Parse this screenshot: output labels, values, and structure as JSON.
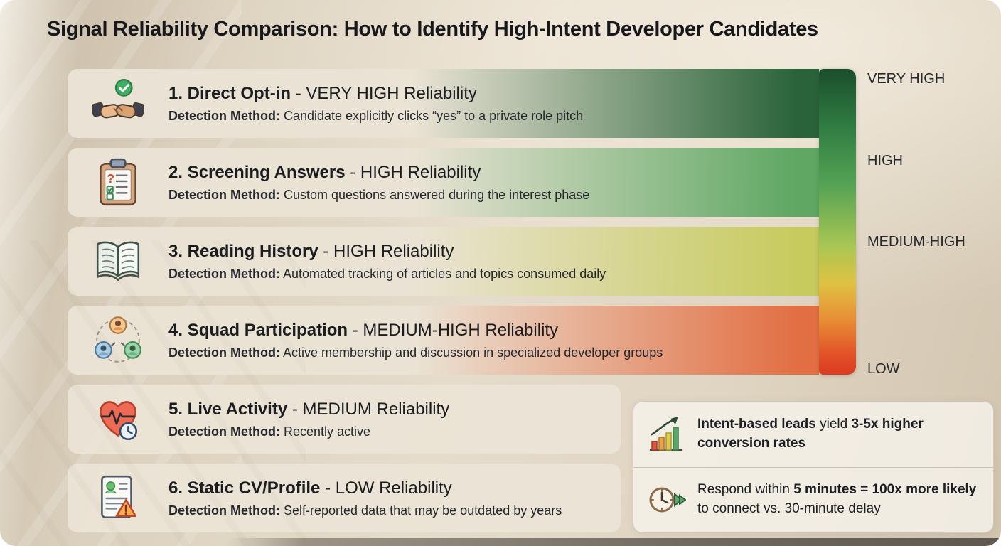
{
  "title": "Signal Reliability Comparison: How to Identify High-Intent Developer Candidates",
  "rows": [
    {
      "title_bold": "1. Direct Opt-in",
      "title_rest": " - VERY HIGH Reliability",
      "method_label": "Detection Method:",
      "method": " Candidate explicitly clicks “yes” to a private role pitch",
      "icon": "handshake-check-icon",
      "color": "#2a6339"
    },
    {
      "title_bold": "2. Screening Answers",
      "title_rest": " - HIGH Reliability",
      "method_label": "Detection Method:",
      "method": " Custom questions answered during the interest phase",
      "icon": "clipboard-questions-icon",
      "color": "#5fa763"
    },
    {
      "title_bold": "3. Reading History",
      "title_rest": " - HIGH Reliability",
      "method_label": "Detection Method:",
      "method": " Automated tracking of articles and topics consumed daily",
      "icon": "open-book-icon",
      "color": "#c7cb5e"
    },
    {
      "title_bold": "4. Squad Participation",
      "title_rest": " - MEDIUM-HIGH Reliability",
      "method_label": "Detection Method:",
      "method": " Active membership and discussion in specialized developer groups",
      "icon": "squad-network-icon",
      "color": "#e26f44"
    },
    {
      "title_bold": "5. Live Activity",
      "title_rest": " - MEDIUM Reliability",
      "method_label": "Detection Method:",
      "method": " Recently active",
      "icon": "heart-pulse-clock-icon"
    },
    {
      "title_bold": "6. Static CV/Profile",
      "title_rest": " - LOW Reliability",
      "method_label": "Detection Method:",
      "method": " Self-reported data that may be outdated by years",
      "icon": "cv-warning-icon"
    }
  ],
  "scale": {
    "labels": [
      "VERY HIGH",
      "HIGH",
      "MEDIUM-HIGH",
      "LOW"
    ],
    "gradient": [
      "#1a4e2b 0%",
      "#2f7a42 18%",
      "#55a355 38%",
      "#a9c654 58%",
      "#dfc243 70%",
      "#e88e35 82%",
      "#e04f27 94%",
      "#dc3a1e 100%"
    ]
  },
  "stats": [
    {
      "icon": "growth-chart-icon",
      "segments": [
        {
          "text": "Intent-based leads",
          "bold": true
        },
        {
          "text": " yield ",
          "bold": false
        },
        {
          "text": "3-5x higher conversion rates",
          "bold": true
        }
      ]
    },
    {
      "icon": "fast-response-clock-icon",
      "segments": [
        {
          "text": "Respond within ",
          "bold": false
        },
        {
          "text": "5 minutes = 100x more likely",
          "bold": true
        },
        {
          "text": " to connect vs. 30-minute delay",
          "bold": false
        }
      ]
    }
  ]
}
